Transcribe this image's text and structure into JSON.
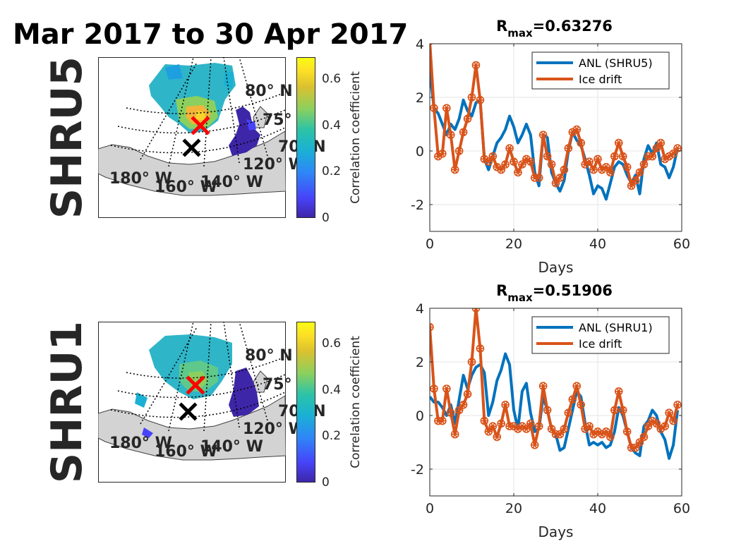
{
  "figure": {
    "suptitle": "Mar 2017 to 30 Apr 2017",
    "colors": {
      "anl": "#0072bd",
      "ice": "#d95319",
      "land": "#d3d3d3",
      "red_marker": "#ff0000",
      "black_marker": "#000000"
    }
  },
  "rows": [
    {
      "row_label": "SHRU5",
      "map": {
        "lat_labels": [
          "80° N",
          "75°",
          "70° N"
        ],
        "lon_labels": [
          "180° W",
          "160° W",
          "140° W",
          "120° W"
        ],
        "colorbar_label": "Correlation coefficient",
        "colorbar_ticks": [
          "0.6",
          "0.4",
          "0.2",
          "0"
        ],
        "colorbar_range": [
          0,
          0.7
        ]
      }
    },
    {
      "row_label": "SHRU1",
      "map": {
        "lat_labels": [
          "80° N",
          "75°",
          "70° N"
        ],
        "lon_labels": [
          "180° W",
          "160° W",
          "140° W",
          "120° W"
        ],
        "colorbar_label": "Correlation coefficient",
        "colorbar_ticks": [
          "0.6",
          "0.4",
          "0.2",
          "0"
        ],
        "colorbar_range": [
          0,
          0.7
        ]
      }
    }
  ],
  "chart_data": [
    {
      "type": "line",
      "title": "R",
      "title_subscript": "max",
      "title_value": "=0.63276",
      "xlabel": "Days",
      "ylabel": "",
      "xlim": [
        0,
        60
      ],
      "ylim": [
        -3,
        4
      ],
      "xticks": [
        0,
        20,
        40,
        60
      ],
      "yticks": [
        -2,
        0,
        2,
        4
      ],
      "grid": true,
      "legend_position": "top-right",
      "series": [
        {
          "name": "ANL (SHRU5)",
          "marker": "none",
          "color": "#0072bd",
          "x": [
            0,
            1,
            2,
            3,
            4,
            5,
            6,
            7,
            8,
            9,
            10,
            11,
            12,
            13,
            14,
            15,
            16,
            17,
            18,
            19,
            20,
            21,
            22,
            23,
            24,
            25,
            26,
            27,
            28,
            29,
            30,
            31,
            32,
            33,
            34,
            35,
            36,
            37,
            38,
            39,
            40,
            41,
            42,
            43,
            44,
            45,
            46,
            47,
            48,
            49,
            50,
            51,
            52,
            53,
            54,
            55,
            56,
            57,
            58,
            59
          ],
          "y": [
            3.0,
            1.6,
            1.4,
            1.0,
            0.6,
            1.0,
            0.8,
            1.2,
            1.9,
            1.5,
            1.3,
            1.8,
            1.9,
            -0.3,
            -0.7,
            -0.2,
            0.3,
            0.5,
            0.8,
            1.3,
            0.9,
            0.3,
            0.6,
            1.0,
            0.6,
            -0.8,
            -1.3,
            0.6,
            0.5,
            -0.8,
            -1.2,
            -1.5,
            -1.1,
            0.0,
            0.7,
            0.4,
            0.2,
            -0.3,
            -0.9,
            -1.6,
            -1.3,
            -1.4,
            -1.8,
            -1.2,
            -0.6,
            -0.4,
            -0.5,
            -0.9,
            -1.2,
            -0.9,
            -1.6,
            -0.3,
            0.2,
            -0.1,
            0.3,
            -0.5,
            -0.6,
            -1.0,
            -0.6,
            0.1
          ]
        },
        {
          "name": "Ice drift",
          "marker": "circle-star",
          "color": "#d95319",
          "x": [
            0,
            1,
            2,
            3,
            4,
            5,
            6,
            7,
            8,
            9,
            10,
            11,
            12,
            13,
            14,
            15,
            16,
            17,
            18,
            19,
            20,
            21,
            22,
            23,
            24,
            25,
            26,
            27,
            28,
            29,
            30,
            31,
            32,
            33,
            34,
            35,
            36,
            37,
            38,
            39,
            40,
            41,
            42,
            43,
            44,
            45,
            46,
            47,
            48,
            49,
            50,
            51,
            52,
            53,
            54,
            55,
            56,
            57,
            58,
            59
          ],
          "y": [
            4.1,
            1.6,
            -0.2,
            -0.1,
            1.6,
            0.6,
            -0.7,
            0.0,
            0.7,
            1.2,
            2.0,
            3.2,
            1.9,
            -0.3,
            -0.4,
            -0.2,
            -0.6,
            -0.7,
            -0.5,
            0.1,
            -0.4,
            -0.8,
            -0.5,
            -0.3,
            -0.4,
            -1.0,
            -1.0,
            0.6,
            -0.2,
            -0.5,
            -1.2,
            -1.0,
            -0.7,
            0.1,
            0.7,
            0.8,
            0.3,
            -0.5,
            -0.4,
            -0.7,
            -0.3,
            -0.7,
            -0.6,
            -0.8,
            -0.2,
            0.3,
            -0.2,
            -0.6,
            -1.3,
            -1.1,
            -0.8,
            -0.5,
            -0.2,
            -0.2,
            0.1,
            0.3,
            -0.3,
            -0.2,
            -0.1,
            0.1
          ]
        }
      ]
    },
    {
      "type": "line",
      "title": "R",
      "title_subscript": "max",
      "title_value": "=0.51906",
      "xlabel": "Days",
      "ylabel": "",
      "xlim": [
        0,
        60
      ],
      "ylim": [
        -3,
        4
      ],
      "xticks": [
        0,
        20,
        40,
        60
      ],
      "yticks": [
        -2,
        0,
        2,
        4
      ],
      "grid": true,
      "legend_position": "top-right",
      "series": [
        {
          "name": "ANL (SHRU1)",
          "marker": "none",
          "color": "#0072bd",
          "x": [
            0,
            1,
            2,
            3,
            4,
            5,
            6,
            7,
            8,
            9,
            10,
            11,
            12,
            13,
            14,
            15,
            16,
            17,
            18,
            19,
            20,
            21,
            22,
            23,
            24,
            25,
            26,
            27,
            28,
            29,
            30,
            31,
            32,
            33,
            34,
            35,
            36,
            37,
            38,
            39,
            40,
            41,
            42,
            43,
            44,
            45,
            46,
            47,
            48,
            49,
            50,
            51,
            52,
            53,
            54,
            55,
            56,
            57,
            58,
            59
          ],
          "y": [
            0.7,
            0.5,
            0.5,
            0.3,
            0.0,
            0.4,
            -0.3,
            0.6,
            1.5,
            1.0,
            1.5,
            1.8,
            1.9,
            1.6,
            0.0,
            0.5,
            1.3,
            1.7,
            2.3,
            1.9,
            0.2,
            -0.5,
            0.9,
            1.2,
            0.1,
            -0.6,
            -0.5,
            0.7,
            0.2,
            -0.5,
            -0.7,
            -1.3,
            -1.2,
            -0.5,
            0.2,
            0.9,
            0.7,
            -0.3,
            -1.1,
            -1.0,
            -1.1,
            -1.0,
            -1.2,
            -1.1,
            -0.6,
            0.3,
            0.0,
            -0.6,
            -1.2,
            -1.4,
            -1.5,
            -0.4,
            -0.2,
            0.2,
            0.0,
            -0.6,
            -0.9,
            -1.6,
            -1.1,
            0.2
          ]
        },
        {
          "name": "Ice drift",
          "marker": "circle-star",
          "color": "#d95319",
          "x": [
            0,
            1,
            2,
            3,
            4,
            5,
            6,
            7,
            8,
            9,
            10,
            11,
            12,
            13,
            14,
            15,
            16,
            17,
            18,
            19,
            20,
            21,
            22,
            23,
            24,
            25,
            26,
            27,
            28,
            29,
            30,
            31,
            32,
            33,
            34,
            35,
            36,
            37,
            38,
            39,
            40,
            41,
            42,
            43,
            44,
            45,
            46,
            47,
            48,
            49,
            50,
            51,
            52,
            53,
            54,
            55,
            56,
            57,
            58,
            59
          ],
          "y": [
            3.3,
            1.0,
            -0.2,
            -0.2,
            1.0,
            0.1,
            -0.7,
            0.2,
            0.4,
            0.8,
            2.0,
            4.0,
            2.5,
            -0.2,
            -0.6,
            -0.4,
            -0.8,
            -0.3,
            0.4,
            -0.4,
            -0.4,
            -0.5,
            -0.4,
            -0.5,
            -0.3,
            -1.1,
            -0.4,
            1.1,
            0.2,
            -0.5,
            -0.7,
            -0.7,
            -0.5,
            0.1,
            0.6,
            1.1,
            0.4,
            -0.5,
            -0.4,
            -0.7,
            -0.6,
            -0.7,
            -0.6,
            -0.8,
            0.2,
            0.9,
            0.2,
            -0.6,
            -1.2,
            -1.2,
            -1.0,
            -0.8,
            -0.4,
            -0.2,
            -0.3,
            -0.5,
            -0.4,
            0.1,
            -0.2,
            0.4
          ]
        }
      ]
    }
  ]
}
